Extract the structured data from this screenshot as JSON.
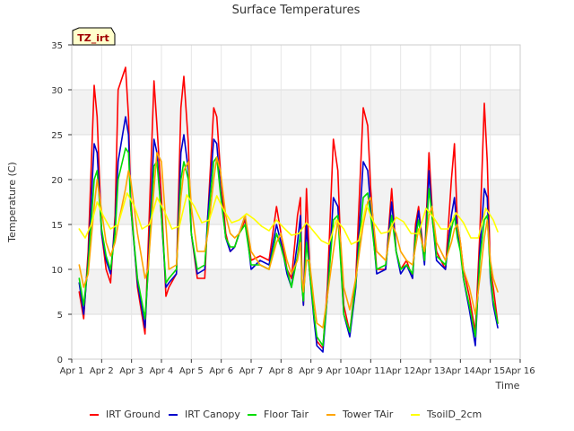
{
  "chart_data": {
    "type": "line",
    "title": "Surface Temperatures",
    "xlabel": "Time",
    "ylabel": "Temperature (C)",
    "annotation": "TZ_irt",
    "xlim": [
      1,
      16
    ],
    "ylim": [
      0,
      35
    ],
    "xticks": [
      1,
      2,
      3,
      4,
      5,
      6,
      7,
      8,
      9,
      10,
      11,
      12,
      13,
      14,
      15,
      16
    ],
    "xtick_labels": [
      "Apr 1",
      "Apr 2",
      "Apr 3",
      "Apr 4",
      "Apr 5",
      "Apr 6",
      "Apr 7",
      "Apr 8",
      "Apr 9",
      "Apr 10",
      "Apr 11",
      "Apr 12",
      "Apr 13",
      "Apr 14",
      "Apr 15",
      "Apr 16"
    ],
    "yticks": [
      0,
      5,
      10,
      15,
      20,
      25,
      30,
      35
    ],
    "ytick_labels": [
      "0",
      "5",
      "10",
      "15",
      "20",
      "25",
      "30",
      "35"
    ],
    "grid": true,
    "banded_background": true,
    "legend_position": "bottom",
    "series": [
      {
        "name": "IRT Ground",
        "color": "#ff0000",
        "x": [
          1.25,
          1.4,
          1.55,
          1.75,
          1.85,
          2.0,
          2.15,
          2.3,
          2.45,
          2.55,
          2.8,
          2.9,
          2.97,
          3.2,
          3.45,
          3.55,
          3.75,
          3.85,
          4.0,
          4.15,
          4.25,
          4.5,
          4.65,
          4.75,
          4.9,
          5.0,
          5.2,
          5.45,
          5.55,
          5.75,
          5.85,
          5.97,
          6.15,
          6.3,
          6.45,
          6.6,
          6.8,
          7.0,
          7.3,
          7.6,
          7.85,
          8.0,
          8.2,
          8.35,
          8.55,
          8.65,
          8.7,
          8.75,
          8.85,
          8.95,
          9.1,
          9.2,
          9.4,
          9.55,
          9.75,
          9.9,
          10.0,
          10.1,
          10.3,
          10.5,
          10.75,
          10.9,
          11.0,
          11.2,
          11.5,
          11.7,
          11.85,
          12.0,
          12.2,
          12.4,
          12.5,
          12.6,
          12.8,
          12.95,
          13.05,
          13.2,
          13.5,
          13.7,
          13.8,
          13.9,
          14.0,
          14.1,
          14.3,
          14.5,
          14.65,
          14.8,
          14.9,
          15.0,
          15.1,
          15.25
        ],
        "y": [
          7.5,
          4.5,
          12,
          30.5,
          27,
          14,
          10,
          8.5,
          16,
          30,
          32.5,
          27,
          18,
          8,
          2.8,
          12,
          31,
          26,
          18,
          7,
          8,
          9.5,
          28,
          31.5,
          24,
          14,
          9,
          9,
          16,
          28,
          27,
          21,
          14,
          12,
          12.5,
          14,
          15.5,
          11,
          11.5,
          11,
          17,
          14,
          10,
          9,
          16,
          18,
          9,
          6,
          19,
          11,
          5,
          2,
          1.2,
          8,
          24.5,
          21,
          12,
          6,
          3,
          9,
          28,
          26,
          19,
          10,
          10,
          19,
          12,
          10,
          11,
          9,
          15,
          17,
          11,
          23,
          17,
          12,
          10,
          20,
          24,
          15,
          13,
          10,
          7,
          3,
          14,
          28.5,
          22,
          10,
          8,
          4
        ]
      },
      {
        "name": "IRT Canopy",
        "color": "#0000cc",
        "x": [
          1.25,
          1.4,
          1.55,
          1.75,
          1.85,
          2.0,
          2.15,
          2.3,
          2.45,
          2.55,
          2.8,
          2.9,
          2.97,
          3.2,
          3.45,
          3.55,
          3.75,
          3.85,
          4.0,
          4.15,
          4.25,
          4.5,
          4.65,
          4.75,
          4.9,
          5.0,
          5.2,
          5.45,
          5.55,
          5.75,
          5.85,
          5.97,
          6.15,
          6.3,
          6.45,
          6.6,
          6.8,
          7.0,
          7.3,
          7.6,
          7.85,
          8.0,
          8.2,
          8.35,
          8.55,
          8.65,
          8.7,
          8.75,
          8.85,
          8.95,
          9.1,
          9.2,
          9.4,
          9.55,
          9.75,
          9.9,
          10.0,
          10.1,
          10.3,
          10.5,
          10.75,
          10.9,
          11.0,
          11.2,
          11.5,
          11.7,
          11.85,
          12.0,
          12.2,
          12.4,
          12.5,
          12.6,
          12.8,
          12.95,
          13.05,
          13.2,
          13.5,
          13.7,
          13.8,
          13.9,
          14.0,
          14.1,
          14.3,
          14.5,
          14.65,
          14.8,
          14.9,
          15.0,
          15.1,
          15.25
        ],
        "y": [
          8.5,
          5,
          11,
          24,
          23,
          14,
          11,
          9.5,
          15,
          22,
          27,
          25,
          17,
          8.5,
          3.5,
          10,
          24.5,
          23,
          16,
          8,
          8.5,
          9.5,
          23,
          25,
          21,
          14,
          9.5,
          10,
          16,
          24.5,
          24,
          19,
          13.5,
          12,
          12.5,
          14,
          16,
          10,
          11,
          10.5,
          15,
          13,
          9.5,
          8,
          13,
          16,
          8.5,
          6,
          15,
          10,
          4.5,
          1.5,
          0.8,
          7,
          18,
          17,
          11,
          5,
          2.5,
          8,
          22,
          21,
          17,
          9.5,
          10,
          17.5,
          12,
          9.5,
          10.5,
          9,
          14,
          16.5,
          10.5,
          21,
          16,
          11,
          10,
          16,
          18,
          14,
          12.5,
          9,
          5.5,
          1.5,
          12,
          19,
          18,
          9,
          6,
          3.5
        ]
      },
      {
        "name": "Floor Tair",
        "color": "#00dd00",
        "x": [
          1.25,
          1.4,
          1.55,
          1.75,
          1.85,
          2.0,
          2.15,
          2.3,
          2.45,
          2.55,
          2.8,
          2.9,
          2.97,
          3.2,
          3.45,
          3.55,
          3.75,
          3.85,
          4.0,
          4.15,
          4.25,
          4.5,
          4.65,
          4.75,
          4.9,
          5.0,
          5.2,
          5.45,
          5.55,
          5.75,
          5.85,
          5.97,
          6.15,
          6.3,
          6.45,
          6.6,
          6.8,
          7.0,
          7.3,
          7.6,
          7.85,
          8.0,
          8.2,
          8.35,
          8.55,
          8.65,
          8.7,
          8.75,
          8.85,
          8.95,
          9.1,
          9.2,
          9.4,
          9.55,
          9.75,
          9.9,
          10.0,
          10.1,
          10.3,
          10.5,
          10.75,
          10.9,
          11.0,
          11.2,
          11.5,
          11.7,
          11.85,
          12.0,
          12.2,
          12.4,
          12.5,
          12.6,
          12.8,
          12.95,
          13.05,
          13.2,
          13.5,
          13.7,
          13.8,
          13.9,
          14.0,
          14.1,
          14.3,
          14.5,
          14.65,
          14.8,
          14.9,
          15.0,
          15.1,
          15.25
        ],
        "y": [
          9,
          6,
          10.5,
          20,
          21,
          14.5,
          11.5,
          10,
          14,
          20,
          23.5,
          23,
          17,
          9,
          4.5,
          9.5,
          21.5,
          22,
          16,
          8.5,
          9,
          10,
          20,
          22,
          20,
          14,
          10,
          10.5,
          15,
          22,
          22.5,
          18.5,
          13.5,
          12.5,
          12.5,
          14,
          15,
          10.5,
          10.5,
          10,
          14,
          12.5,
          10,
          8,
          11.5,
          14,
          8,
          6.5,
          13,
          10,
          5,
          2.5,
          1.5,
          7,
          15.5,
          16,
          10.5,
          5,
          3,
          8.5,
          18,
          18.5,
          16,
          10,
          10.5,
          16,
          12,
          10,
          10.5,
          9.5,
          13.5,
          15.5,
          11,
          19,
          16,
          11.5,
          10.5,
          14.5,
          16,
          13.5,
          12,
          9,
          6,
          2.5,
          11,
          15.5,
          16,
          9.5,
          6.5,
          4
        ]
      },
      {
        "name": "Tower TAir",
        "color": "#ffa500",
        "x": [
          1.25,
          1.4,
          1.55,
          1.75,
          1.85,
          2.0,
          2.15,
          2.3,
          2.45,
          2.55,
          2.8,
          2.9,
          2.97,
          3.2,
          3.45,
          3.55,
          3.75,
          3.85,
          4.0,
          4.15,
          4.25,
          4.5,
          4.65,
          4.75,
          4.9,
          5.0,
          5.2,
          5.45,
          5.55,
          5.75,
          5.85,
          5.97,
          6.15,
          6.3,
          6.45,
          6.6,
          6.8,
          7.0,
          7.3,
          7.6,
          7.85,
          8.0,
          8.2,
          8.35,
          8.55,
          8.65,
          8.7,
          8.75,
          8.85,
          8.95,
          9.1,
          9.2,
          9.4,
          9.55,
          9.75,
          9.9,
          10.0,
          10.1,
          10.3,
          10.5,
          10.75,
          10.9,
          11.0,
          11.2,
          11.5,
          11.7,
          11.85,
          12.0,
          12.2,
          12.4,
          12.5,
          12.6,
          12.8,
          12.95,
          13.05,
          13.2,
          13.5,
          13.7,
          13.8,
          13.9,
          14.0,
          14.1,
          14.3,
          14.5,
          14.65,
          14.8,
          14.9,
          15.0,
          15.1,
          15.25
        ],
        "y": [
          10.5,
          8,
          9.5,
          17,
          20,
          16.5,
          13,
          11.5,
          13,
          15,
          19,
          21,
          20,
          14,
          9,
          10,
          19,
          23,
          22,
          15,
          10,
          10.5,
          18,
          21,
          22,
          17,
          12,
          12,
          14,
          20,
          22.5,
          21,
          16,
          14,
          13.5,
          14,
          16,
          12,
          10.5,
          10,
          13,
          14,
          11,
          9.5,
          11,
          13,
          9,
          7.5,
          11,
          11,
          6.5,
          4,
          3.5,
          7,
          12,
          15.5,
          13,
          8,
          5.5,
          9,
          15,
          17.5,
          18,
          12,
          11,
          15,
          14,
          12,
          11,
          10.5,
          12.5,
          14.5,
          12,
          16,
          17,
          13,
          11,
          13,
          14.5,
          15,
          13,
          10,
          8,
          5,
          9,
          13.5,
          15.5,
          11,
          9,
          7.5
        ]
      },
      {
        "name": "TsoilD_2cm",
        "color": "#ffff00",
        "x": [
          1.25,
          1.45,
          1.65,
          1.85,
          2.05,
          2.3,
          2.55,
          2.85,
          3.1,
          3.35,
          3.6,
          3.85,
          4.1,
          4.35,
          4.6,
          4.85,
          5.1,
          5.35,
          5.6,
          5.85,
          6.1,
          6.35,
          6.6,
          6.85,
          7.1,
          7.35,
          7.6,
          7.85,
          8.1,
          8.35,
          8.6,
          8.85,
          9.1,
          9.35,
          9.6,
          9.85,
          10.1,
          10.35,
          10.6,
          10.85,
          11.1,
          11.35,
          11.6,
          11.85,
          12.1,
          12.35,
          12.6,
          12.85,
          13.1,
          13.35,
          13.6,
          13.85,
          14.1,
          14.35,
          14.6,
          14.85,
          15.1,
          15.25
        ],
        "y": [
          14.5,
          13.5,
          15,
          17.5,
          16,
          14.5,
          15,
          18.5,
          17,
          14.5,
          15,
          18,
          16.5,
          14.5,
          14.8,
          18.3,
          17,
          15.2,
          15.5,
          18.2,
          16.5,
          15.2,
          15.5,
          16.2,
          15.6,
          14.8,
          14.3,
          15.5,
          14.6,
          13.8,
          14,
          15.2,
          14.2,
          13.2,
          12.8,
          15.5,
          14.5,
          12.8,
          13.2,
          17.2,
          15.2,
          14,
          14.2,
          15.8,
          15.3,
          14,
          14,
          16.8,
          15.8,
          14.5,
          14.5,
          16.3,
          15.2,
          13.5,
          13.5,
          16.8,
          15.5,
          14.2
        ]
      }
    ]
  }
}
